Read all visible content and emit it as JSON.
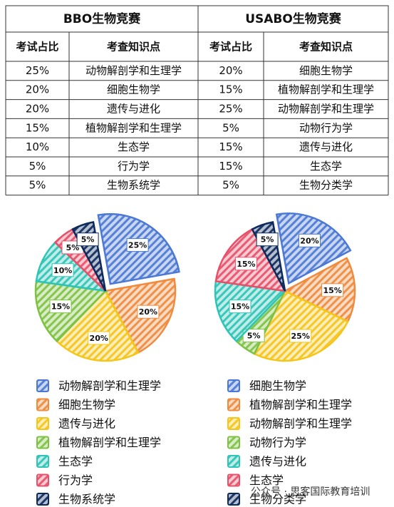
{
  "table": {
    "titles": [
      "BBO生物竞赛",
      "USABO生物竞赛"
    ],
    "headers": [
      "考试占比",
      "考查知识点",
      "考试占比",
      "考查知识点"
    ],
    "rows": [
      [
        "25%",
        "动物解剖学和生理学",
        "20%",
        "细胞生物学"
      ],
      [
        "20%",
        "细胞生物学",
        "15%",
        "植物解剖学和生理学"
      ],
      [
        "20%",
        "遗传与进化",
        "25%",
        "动物解剖学和生理学"
      ],
      [
        "15%",
        "植物解剖学和生理学",
        "5%",
        "动物行为学"
      ],
      [
        "10%",
        "生态学",
        "15%",
        "遗传与进化"
      ],
      [
        "5%",
        "行为学",
        "15%",
        "生态学"
      ],
      [
        "5%",
        "生物系统学",
        "5%",
        "生物分类学"
      ]
    ]
  },
  "chart_data": [
    {
      "type": "pie",
      "categories": [
        "动物解剖学和生理学",
        "细胞生物学",
        "遗传与进化",
        "植物解剖学和生理学",
        "生态学",
        "行为学",
        "生物系统学"
      ],
      "values": [
        25,
        20,
        20,
        15,
        10,
        5,
        5
      ],
      "value_labels": [
        "25%",
        "20%",
        "20%",
        "15%",
        "10%",
        "5%",
        "5%"
      ],
      "colors": [
        "#4a78d4",
        "#f08a3c",
        "#f5c518",
        "#7dc243",
        "#2ec4b6",
        "#e8506a",
        "#0d2a5c"
      ]
    },
    {
      "type": "pie",
      "categories": [
        "细胞生物学",
        "植物解剖学和生理学",
        "动物解剖学和生理学",
        "动物行为学",
        "遗传与进化",
        "生态学",
        "生物分类学"
      ],
      "values": [
        20,
        15,
        25,
        5,
        15,
        15,
        5
      ],
      "value_labels": [
        "20%",
        "15%",
        "25%",
        "5%",
        "15%",
        "15%",
        "5%"
      ],
      "colors": [
        "#4a78d4",
        "#f08a3c",
        "#f5c518",
        "#7dc243",
        "#2ec4b6",
        "#e8506a",
        "#0d2a5c"
      ]
    }
  ],
  "watermark": "公众号 · 思客国际教育培训"
}
